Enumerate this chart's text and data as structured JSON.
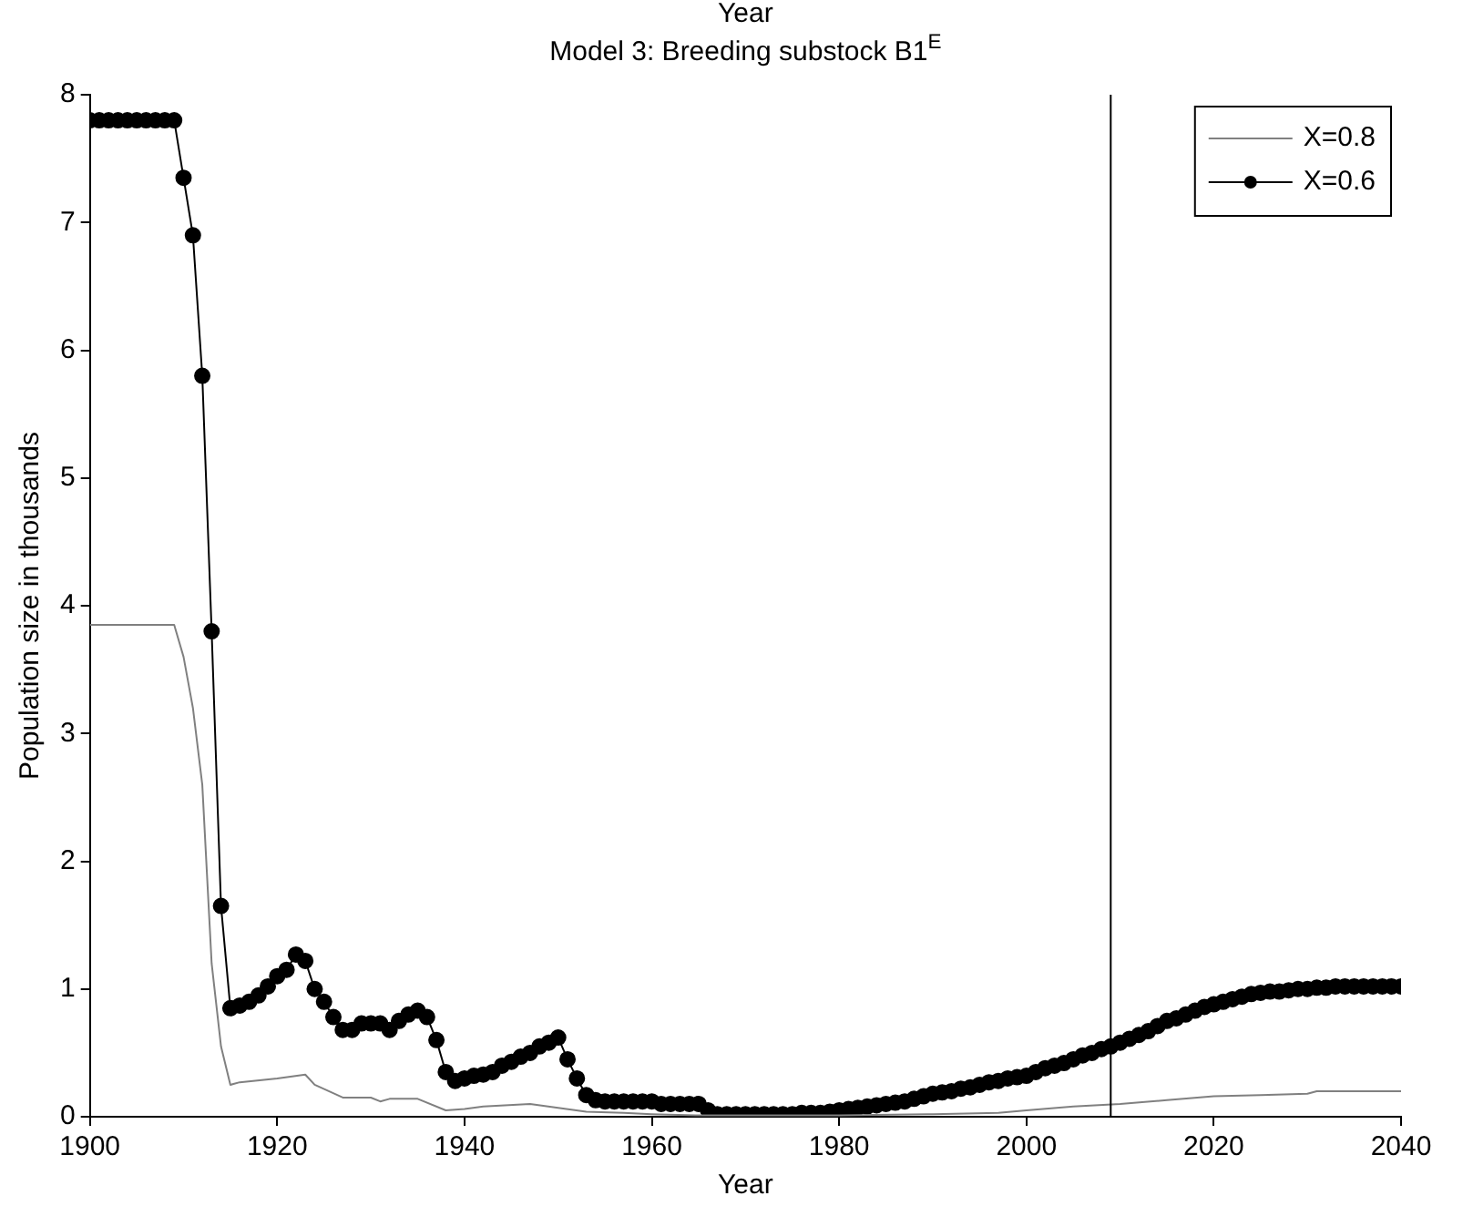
{
  "chart_data": {
    "type": "line",
    "title": "Model 3: Breeding substock B1$^{E}$",
    "xlabel": "Year",
    "ylabel": "Population size in thousands",
    "annotations": [
      "Year"
    ],
    "xlim": [
      1900,
      2040
    ],
    "xticks": [
      1900,
      1920,
      1940,
      1960,
      1980,
      2000,
      2020,
      2040
    ],
    "ylim": [
      0,
      8
    ],
    "yticks": [
      0,
      1,
      2,
      3,
      4,
      5,
      6,
      7,
      8
    ],
    "grid": false,
    "legend": "top right",
    "ref_lines": [
      {
        "axis": "x",
        "value": 2009,
        "color": "#000000"
      }
    ],
    "series": [
      {
        "name": "X=0.8",
        "color": "#808080",
        "marker": "none",
        "x": [
          1900,
          1909,
          1910,
          1911,
          1912,
          1913,
          1914,
          1915,
          1916,
          1920,
          1923,
          1924,
          1927,
          1930,
          1931,
          1932,
          1935,
          1938,
          1940,
          1942,
          1947,
          1950,
          1953,
          1957,
          1960,
          1965,
          1970,
          1980,
          1990,
          1997,
          2000,
          2005,
          2010,
          2015,
          2020,
          2025,
          2030,
          2031,
          2040
        ],
        "values": [
          3.85,
          3.85,
          3.6,
          3.2,
          2.6,
          1.2,
          0.55,
          0.25,
          0.27,
          0.3,
          0.33,
          0.25,
          0.15,
          0.15,
          0.12,
          0.14,
          0.14,
          0.05,
          0.06,
          0.08,
          0.1,
          0.07,
          0.04,
          0.03,
          0.02,
          0.01,
          0.01,
          0.01,
          0.02,
          0.03,
          0.05,
          0.08,
          0.1,
          0.13,
          0.16,
          0.17,
          0.18,
          0.2,
          0.2
        ]
      },
      {
        "name": "X=0.6",
        "color": "#000000",
        "marker": "circle",
        "x": [
          1900,
          1901,
          1902,
          1903,
          1904,
          1905,
          1906,
          1907,
          1908,
          1909,
          1910,
          1911,
          1912,
          1913,
          1914,
          1915,
          1916,
          1917,
          1918,
          1919,
          1920,
          1921,
          1922,
          1923,
          1924,
          1925,
          1926,
          1927,
          1928,
          1929,
          1930,
          1931,
          1932,
          1933,
          1934,
          1935,
          1936,
          1937,
          1938,
          1939,
          1940,
          1941,
          1942,
          1943,
          1944,
          1945,
          1946,
          1947,
          1948,
          1949,
          1950,
          1951,
          1952,
          1953,
          1954,
          1955,
          1956,
          1957,
          1958,
          1959,
          1960,
          1961,
          1962,
          1963,
          1964,
          1965,
          1966,
          1967,
          1968,
          1969,
          1970,
          1971,
          1972,
          1973,
          1974,
          1975,
          1976,
          1977,
          1978,
          1979,
          1980,
          1981,
          1982,
          1983,
          1984,
          1985,
          1986,
          1987,
          1988,
          1989,
          1990,
          1991,
          1992,
          1993,
          1994,
          1995,
          1996,
          1997,
          1998,
          1999,
          2000,
          2001,
          2002,
          2003,
          2004,
          2005,
          2006,
          2007,
          2008,
          2009,
          2010,
          2011,
          2012,
          2013,
          2014,
          2015,
          2016,
          2017,
          2018,
          2019,
          2020,
          2021,
          2022,
          2023,
          2024,
          2025,
          2026,
          2027,
          2028,
          2029,
          2030,
          2031,
          2032,
          2033,
          2034,
          2035,
          2036,
          2037,
          2038,
          2039,
          2040
        ],
        "values": [
          7.8,
          7.8,
          7.8,
          7.8,
          7.8,
          7.8,
          7.8,
          7.8,
          7.8,
          7.8,
          7.35,
          6.9,
          5.8,
          3.8,
          1.65,
          0.85,
          0.87,
          0.9,
          0.95,
          1.02,
          1.1,
          1.15,
          1.27,
          1.22,
          1.0,
          0.9,
          0.78,
          0.68,
          0.68,
          0.73,
          0.73,
          0.73,
          0.68,
          0.75,
          0.8,
          0.83,
          0.78,
          0.6,
          0.35,
          0.28,
          0.3,
          0.32,
          0.33,
          0.35,
          0.4,
          0.43,
          0.47,
          0.5,
          0.55,
          0.58,
          0.62,
          0.45,
          0.3,
          0.17,
          0.13,
          0.12,
          0.12,
          0.12,
          0.12,
          0.12,
          0.12,
          0.1,
          0.1,
          0.1,
          0.1,
          0.1,
          0.05,
          0.02,
          0.02,
          0.02,
          0.02,
          0.02,
          0.02,
          0.02,
          0.02,
          0.02,
          0.03,
          0.03,
          0.03,
          0.04,
          0.05,
          0.06,
          0.07,
          0.08,
          0.09,
          0.1,
          0.11,
          0.12,
          0.14,
          0.16,
          0.18,
          0.19,
          0.2,
          0.22,
          0.23,
          0.25,
          0.27,
          0.28,
          0.3,
          0.31,
          0.32,
          0.35,
          0.38,
          0.4,
          0.42,
          0.45,
          0.48,
          0.5,
          0.53,
          0.55,
          0.58,
          0.61,
          0.64,
          0.67,
          0.71,
          0.75,
          0.77,
          0.8,
          0.83,
          0.86,
          0.88,
          0.9,
          0.92,
          0.94,
          0.96,
          0.97,
          0.98,
          0.98,
          0.99,
          1.0,
          1.0,
          1.01,
          1.01,
          1.02,
          1.02,
          1.02,
          1.02,
          1.02,
          1.02,
          1.02,
          1.02
        ]
      }
    ]
  }
}
